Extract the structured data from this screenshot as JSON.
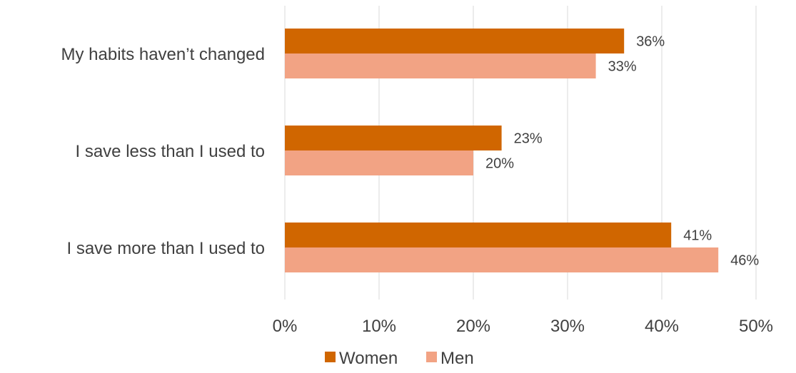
{
  "chart_data": {
    "type": "bar",
    "orientation": "horizontal",
    "categories": [
      "My habits haven’t changed",
      "I save less than I used to",
      "I save more than I used to"
    ],
    "series": [
      {
        "name": "Women",
        "color": "#d06600",
        "values": [
          36,
          23,
          41
        ],
        "labels": [
          "36%",
          "23%",
          "41%"
        ]
      },
      {
        "name": "Men",
        "color": "#f2a384",
        "values": [
          33,
          20,
          46
        ],
        "labels": [
          "33%",
          "20%",
          "46%"
        ]
      }
    ],
    "xlim": [
      0,
      50
    ],
    "ticks": [
      0,
      10,
      20,
      30,
      40,
      50
    ],
    "tick_labels": [
      "0%",
      "10%",
      "20%",
      "30%",
      "40%",
      "50%"
    ],
    "grid": true,
    "legend_position": "bottom",
    "title": "",
    "xlabel": "",
    "ylabel": ""
  }
}
